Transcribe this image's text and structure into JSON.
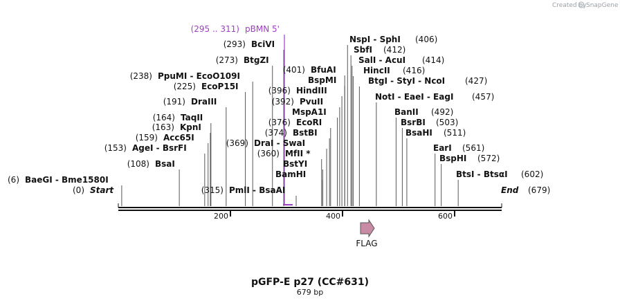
{
  "brand": {
    "created_by": "Created by",
    "name": "SnapGene"
  },
  "map": {
    "title": "pGFP-E p27 (CC#631)",
    "length_label": "679 bp",
    "length": 679,
    "ticks": [
      {
        "pos": 200,
        "label": "200"
      },
      {
        "pos": 400,
        "label": "400"
      },
      {
        "pos": 600,
        "label": "600"
      }
    ],
    "left_terminus": {
      "pos_text": "(0)",
      "name": "Start",
      "pos": 0
    },
    "right_terminus": {
      "name": "End",
      "pos_text": "(679)",
      "pos": 679
    },
    "primer": {
      "range_text": "(295 .. 311)",
      "name": "pBMN 5'",
      "start": 295,
      "end": 311,
      "color": "#a03cc8"
    },
    "feature": {
      "name": "FLAG",
      "color": "#c98aa6"
    },
    "sites_left": [
      {
        "pos_text": "(6)",
        "name": "BaeGI - Bme1580I",
        "pos": 6
      },
      {
        "pos_text": "(108)",
        "name": "BsaI",
        "pos": 108
      },
      {
        "pos_text": "(153)",
        "name": "AgeI - BsrFI",
        "pos": 153
      },
      {
        "pos_text": "(159)",
        "name": "Acc65I",
        "pos": 159
      },
      {
        "pos_text": "(163)",
        "name": "KpnI",
        "pos": 163
      },
      {
        "pos_text": "(164)",
        "name": "TaqII",
        "pos": 164
      },
      {
        "pos_text": "(191)",
        "name": "DraIII",
        "pos": 191
      },
      {
        "pos_text": "(225)",
        "name": "EcoP15I",
        "pos": 225
      },
      {
        "pos_text": "(238)",
        "name": "PpuMI - EcoO109I",
        "pos": 238
      },
      {
        "pos_text": "(273)",
        "name": "BtgZI",
        "pos": 273
      },
      {
        "pos_text": "(293)",
        "name": "BciVI",
        "pos": 293
      }
    ],
    "sites_middle": [
      {
        "pos_text": "(315)",
        "name": "PmlI - BsaAI",
        "pos": 315
      },
      {
        "pos_text": "(369)",
        "name": "DraI - SwaI",
        "pos": 369
      },
      {
        "pos_text": "(360)",
        "name": "MfII *",
        "pos": 360
      },
      {
        "pos_text": "",
        "name": "BstYI",
        "pos": 362
      },
      {
        "pos_text": "",
        "name": "BamHI",
        "pos": 362
      }
    ],
    "sites_right": [
      {
        "pos_text": "(374)",
        "name": "BstBI",
        "pos": 374
      },
      {
        "pos_text": "(376)",
        "name": "EcoRI",
        "pos": 376
      },
      {
        "pos_text": "",
        "name": "MspA1I",
        "pos": 388
      },
      {
        "pos_text": "(392)",
        "name": "PvuII",
        "pos": 392
      },
      {
        "pos_text": "(396)",
        "name": "HindIII",
        "pos": 396
      },
      {
        "pos_text": "",
        "name": "BspMI",
        "pos": 401
      },
      {
        "pos_text": "(401)",
        "name": "BfuAI",
        "pos": 401
      },
      {
        "pos_text": "(406)",
        "name": "NspI - SphI",
        "pos": 406
      },
      {
        "pos_text": "(412)",
        "name": "SbfI",
        "pos": 412
      },
      {
        "pos_text": "(414)",
        "name": "SalI - AcuI",
        "pos": 414
      },
      {
        "pos_text": "(416)",
        "name": "HincII",
        "pos": 416
      },
      {
        "pos_text": "(427)",
        "name": "BtgI - StyI - NcoI",
        "pos": 427
      },
      {
        "pos_text": "(457)",
        "name": "NotI - EaeI - EagI",
        "pos": 457
      },
      {
        "pos_text": "(492)",
        "name": "BanII",
        "pos": 492
      },
      {
        "pos_text": "(503)",
        "name": "BsrBI",
        "pos": 503
      },
      {
        "pos_text": "(511)",
        "name": "BsaHI",
        "pos": 511
      },
      {
        "pos_text": "(561)",
        "name": "EarI",
        "pos": 561
      },
      {
        "pos_text": "(572)",
        "name": "BspHI",
        "pos": 572
      },
      {
        "pos_text": "(602)",
        "name": "BtsI - BtsαI",
        "pos": 602
      }
    ]
  }
}
